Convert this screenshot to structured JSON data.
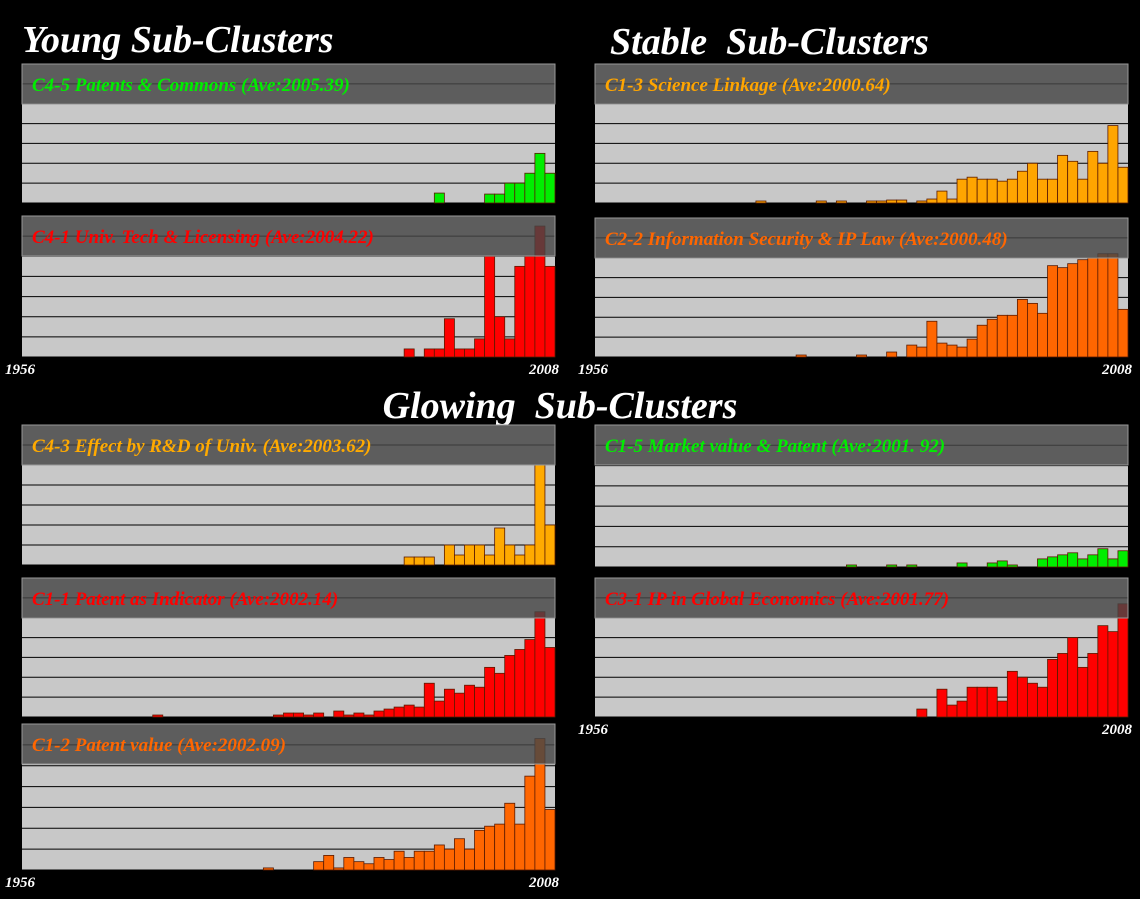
{
  "headings": {
    "young": "Young Sub-Clusters",
    "stable": "Stable  Sub-Clusters",
    "glowing": "Glowing  Sub-Clusters"
  },
  "chart_data": [
    {
      "type": "bar",
      "title": "C4-5 Patents & Commons (Ave:2005.39)",
      "color": "#00ee00",
      "xlim": [
        1956,
        2009
      ],
      "ylim": [
        0,
        7
      ],
      "yticks": [
        1,
        2,
        3,
        4,
        5,
        6
      ],
      "x": [
        1997,
        2002,
        2003,
        2004,
        2005,
        2006,
        2007,
        2008
      ],
      "values": [
        0.5,
        0.45,
        0.45,
        1,
        1,
        1.5,
        2.5,
        1.5
      ]
    },
    {
      "type": "bar",
      "title": "C4-1 Univ. Tech & Licensing (Ave:2004.22)",
      "color": "#ff0000",
      "xlim": [
        1956,
        2009
      ],
      "ylim": [
        0,
        7
      ],
      "yticks": [
        1,
        2,
        3,
        4,
        5,
        6
      ],
      "xticks": [
        1956,
        2008
      ],
      "x": [
        1994,
        1996,
        1997,
        1998,
        1999,
        2000,
        2001,
        2002,
        2003,
        2004,
        2005,
        2006,
        2007,
        2008
      ],
      "values": [
        0.4,
        0.4,
        0.4,
        1.9,
        0.4,
        0.4,
        0.9,
        5,
        2,
        0.9,
        4.5,
        5,
        6.5,
        4.5
      ]
    },
    {
      "type": "bar",
      "title": "C1-3 Science Linkage (Ave:2000.64)",
      "color": "#ffa500",
      "xlim": [
        1956,
        2009
      ],
      "ylim": [
        0,
        7
      ],
      "yticks": [
        1,
        2,
        3,
        4,
        5,
        6
      ],
      "x": [
        1972,
        1978,
        1980,
        1983,
        1984,
        1985,
        1986,
        1988,
        1989,
        1990,
        1991,
        1992,
        1993,
        1994,
        1995,
        1996,
        1997,
        1998,
        1999,
        2000,
        2001,
        2002,
        2003,
        2004,
        2005,
        2006,
        2007,
        2008
      ],
      "values": [
        0.1,
        0.1,
        0.1,
        0.1,
        0.1,
        0.15,
        0.15,
        0.1,
        0.2,
        0.6,
        0.2,
        1.2,
        1.3,
        1.2,
        1.2,
        1.1,
        1.2,
        1.6,
        2.0,
        1.2,
        1.2,
        2.4,
        2.1,
        1.2,
        2.6,
        2.0,
        3.9,
        1.8
      ]
    },
    {
      "type": "bar",
      "title": "C2-2 Information Security & IP Law (Ave:2000.48)",
      "color": "#ff6600",
      "xlim": [
        1956,
        2009
      ],
      "ylim": [
        0,
        7
      ],
      "yticks": [
        1,
        2,
        3,
        4,
        5,
        6
      ],
      "xticks": [
        1956,
        2008
      ],
      "x": [
        1976,
        1982,
        1985,
        1987,
        1988,
        1989,
        1990,
        1991,
        1992,
        1993,
        1994,
        1995,
        1996,
        1997,
        1998,
        1999,
        2000,
        2001,
        2002,
        2003,
        2004,
        2005,
        2006,
        2007,
        2008
      ],
      "values": [
        0.1,
        0.1,
        0.25,
        0.6,
        0.5,
        1.8,
        0.7,
        0.6,
        0.5,
        0.9,
        1.6,
        1.9,
        2.1,
        2.1,
        2.9,
        2.7,
        2.2,
        4.6,
        4.5,
        4.7,
        4.9,
        5.0,
        5.2,
        5.2,
        2.4
      ]
    },
    {
      "type": "bar",
      "title": "C4-3 Effect by R&D of Univ. (Ave:2003.62)",
      "color": "#ffaa00",
      "xlim": [
        1956,
        2009
      ],
      "ylim": [
        0,
        7
      ],
      "yticks": [
        1,
        2,
        3,
        4,
        5,
        6
      ],
      "x": [
        1994,
        1995,
        1996,
        1998,
        1999,
        2000,
        2001,
        2002,
        2003,
        2004,
        2005,
        2006,
        2007,
        2008
      ],
      "values": [
        0.4,
        0.4,
        0.4,
        1.0,
        0.5,
        1.0,
        1.0,
        0.5,
        1.85,
        1.0,
        0.5,
        1.0,
        5.0,
        2.0
      ]
    },
    {
      "type": "bar",
      "title": "C1-1 Patent as Indicator (Ave:2002.14)",
      "color": "#ff0000",
      "xlim": [
        1956,
        2009
      ],
      "ylim": [
        0,
        7
      ],
      "yticks": [
        1,
        2,
        3,
        4,
        5,
        6
      ],
      "x": [
        1969,
        1981,
        1982,
        1983,
        1984,
        1985,
        1987,
        1988,
        1989,
        1990,
        1991,
        1992,
        1993,
        1994,
        1995,
        1996,
        1997,
        1998,
        1999,
        2000,
        2001,
        2002,
        2003,
        2004,
        2005,
        2006,
        2007,
        2008
      ],
      "values": [
        0.1,
        0.1,
        0.2,
        0.2,
        0.1,
        0.2,
        0.3,
        0.1,
        0.2,
        0.1,
        0.3,
        0.4,
        0.5,
        0.6,
        0.5,
        1.7,
        0.8,
        1.4,
        1.2,
        1.6,
        1.5,
        2.5,
        2.2,
        3.1,
        3.4,
        3.9,
        5.3,
        3.5
      ]
    },
    {
      "type": "bar",
      "title": "C1-2 Patent value (Ave:2002.09)",
      "color": "#ff6600",
      "xlim": [
        1956,
        2009
      ],
      "ylim": [
        0,
        7
      ],
      "yticks": [
        1,
        2,
        3,
        4,
        5,
        6
      ],
      "xticks": [
        1956,
        2008
      ],
      "x": [
        1980,
        1985,
        1986,
        1987,
        1988,
        1989,
        1990,
        1991,
        1992,
        1993,
        1994,
        1995,
        1996,
        1997,
        1998,
        1999,
        2000,
        2001,
        2002,
        2003,
        2004,
        2005,
        2006,
        2007,
        2008
      ],
      "values": [
        0.1,
        0.4,
        0.7,
        0.1,
        0.6,
        0.4,
        0.3,
        0.6,
        0.5,
        0.9,
        0.6,
        0.9,
        0.9,
        1.2,
        1.0,
        1.5,
        1.0,
        1.9,
        2.1,
        2.2,
        3.2,
        2.2,
        4.5,
        6.3,
        2.9
      ]
    },
    {
      "type": "bar",
      "title": "C1-5 Market value & Patent (Ave:2001. 92)",
      "color": "#00ee00",
      "xlim": [
        1956,
        2009
      ],
      "ylim": [
        0,
        7
      ],
      "yticks": [
        1,
        2,
        3,
        4,
        5,
        6
      ],
      "x": [
        1981,
        1985,
        1987,
        1992,
        1995,
        1996,
        1997,
        2000,
        2001,
        2002,
        2003,
        2004,
        2005,
        2006,
        2007,
        2008
      ],
      "values": [
        0.1,
        0.1,
        0.1,
        0.2,
        0.2,
        0.3,
        0.1,
        0.4,
        0.5,
        0.6,
        0.7,
        0.4,
        0.6,
        0.9,
        0.4,
        0.8
      ]
    },
    {
      "type": "bar",
      "title": "C3-1 IP in Global Economics (Ave:2001.77)",
      "color": "#ff0000",
      "xlim": [
        1956,
        2009
      ],
      "ylim": [
        0,
        7
      ],
      "yticks": [
        1,
        2,
        3,
        4,
        5,
        6
      ],
      "xticks": [
        1956,
        2008
      ],
      "x": [
        1988,
        1990,
        1991,
        1992,
        1993,
        1994,
        1995,
        1996,
        1997,
        1998,
        1999,
        2000,
        2001,
        2002,
        2003,
        2004,
        2005,
        2006,
        2007,
        2008
      ],
      "values": [
        0.4,
        1.4,
        0.6,
        0.8,
        1.5,
        1.5,
        1.5,
        0.8,
        2.3,
        2.0,
        1.7,
        1.5,
        2.9,
        3.2,
        4.0,
        2.5,
        3.2,
        4.6,
        4.3,
        5.7
      ]
    }
  ]
}
